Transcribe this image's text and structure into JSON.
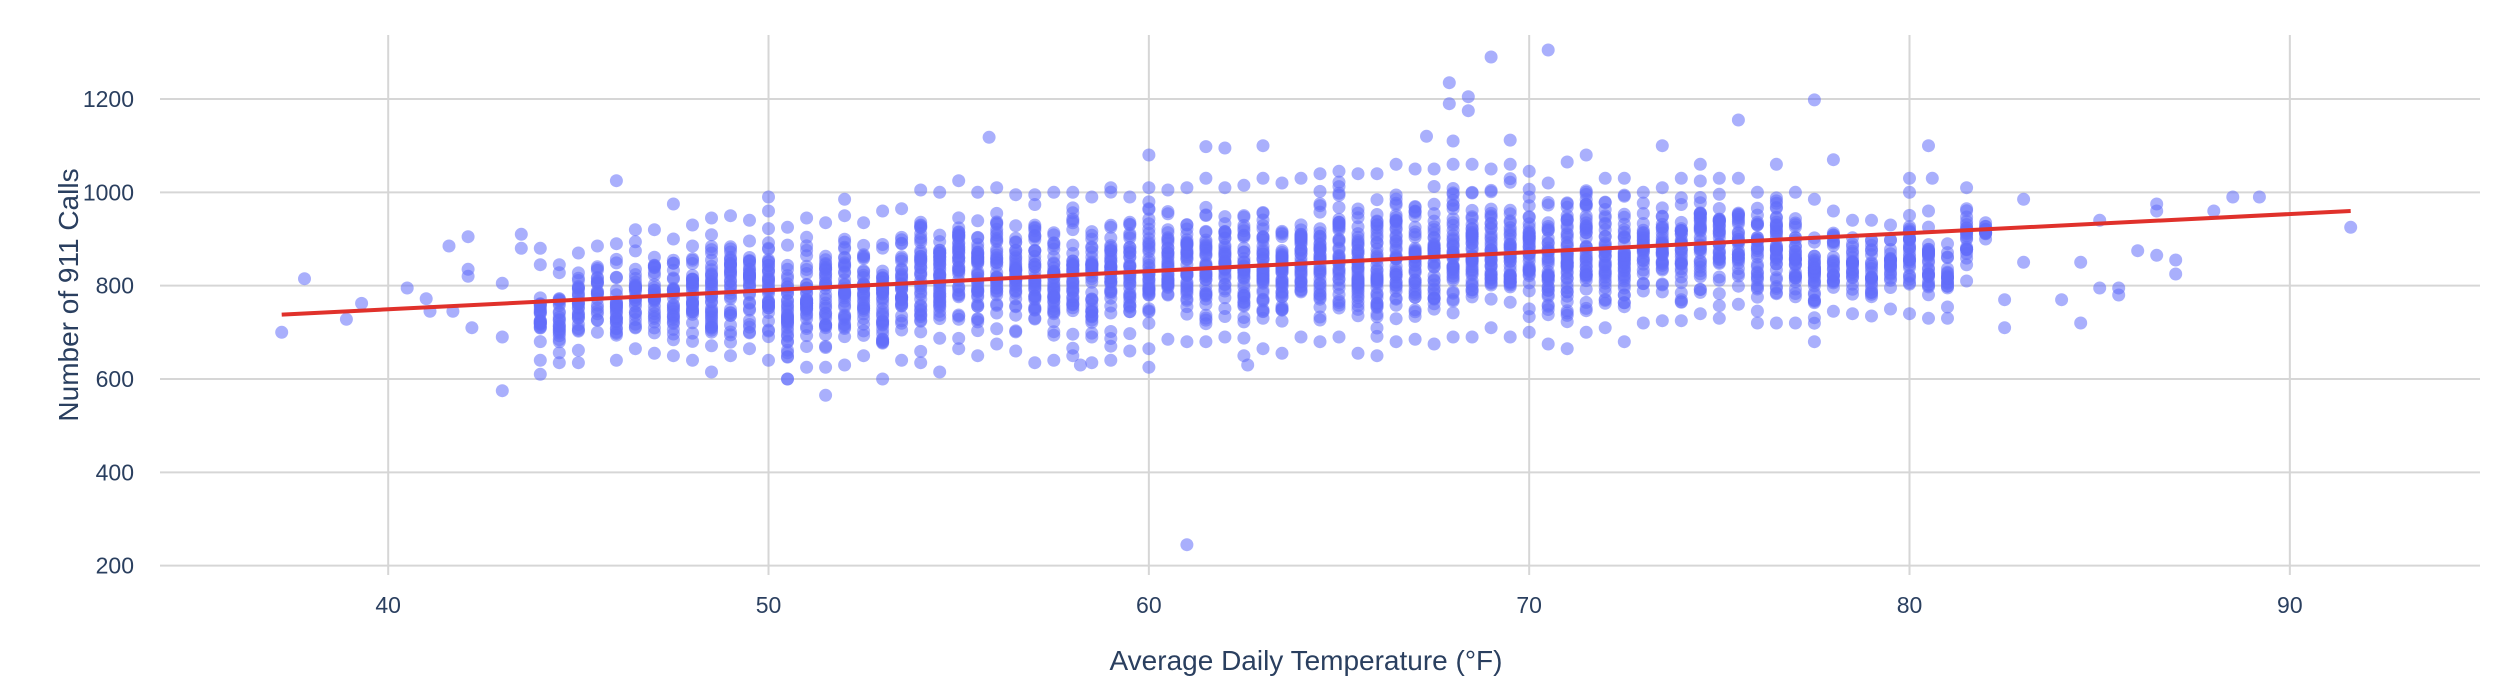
{
  "chart_data": {
    "type": "scatter",
    "title": "",
    "xlabel": "Average Daily Temperature (°F)",
    "ylabel": "Number of 911 Calls",
    "xlim": [
      34,
      95
    ],
    "ylim": [
      180,
      1380
    ],
    "x_ticks": [
      40,
      50,
      60,
      70,
      80,
      90
    ],
    "y_ticks": [
      200,
      400,
      600,
      800,
      1000,
      1200
    ],
    "grid": true,
    "legend": "none",
    "colors": {
      "points": "#636efa",
      "trendline": "#e0312b",
      "grid": "#d6d6d6",
      "text": "#2a3f5f"
    },
    "series": [
      {
        "marker": "circle",
        "description_points": [
          {
            "x": 37.2,
            "y": 700
          },
          {
            "x": 37.8,
            "y": 815
          },
          {
            "x": 38.9,
            "y": 728
          },
          {
            "x": 39.3,
            "y": 762
          },
          {
            "x": 40.5,
            "y": 795
          },
          {
            "x": 41.0,
            "y": 772
          },
          {
            "x": 41.1,
            "y": 745
          },
          {
            "x": 41.6,
            "y": 885
          },
          {
            "x": 41.7,
            "y": 745
          },
          {
            "x": 42.1,
            "y": 905
          },
          {
            "x": 42.1,
            "y": 835
          },
          {
            "x": 42.1,
            "y": 820
          },
          {
            "x": 42.2,
            "y": 710
          },
          {
            "x": 43.0,
            "y": 805
          },
          {
            "x": 43.0,
            "y": 690
          },
          {
            "x": 43.0,
            "y": 575
          },
          {
            "x": 43.5,
            "y": 910
          },
          {
            "x": 43.5,
            "y": 880
          },
          {
            "x": 44.0,
            "y": 610
          },
          {
            "x": 44.0,
            "y": 880
          },
          {
            "x": 46.0,
            "y": 1025
          },
          {
            "x": 47.5,
            "y": 975
          },
          {
            "x": 50.0,
            "y": 990
          },
          {
            "x": 50.5,
            "y": 600
          },
          {
            "x": 51.5,
            "y": 565
          },
          {
            "x": 52.0,
            "y": 985
          },
          {
            "x": 55.8,
            "y": 1118
          },
          {
            "x": 58.2,
            "y": 630
          },
          {
            "x": 60.0,
            "y": 1080
          },
          {
            "x": 60.0,
            "y": 625
          },
          {
            "x": 61.0,
            "y": 245
          },
          {
            "x": 61.5,
            "y": 1098
          },
          {
            "x": 62.0,
            "y": 1095
          },
          {
            "x": 62.6,
            "y": 630
          },
          {
            "x": 63.0,
            "y": 1100
          },
          {
            "x": 67.3,
            "y": 1120
          },
          {
            "x": 67.9,
            "y": 1235
          },
          {
            "x": 67.9,
            "y": 1190
          },
          {
            "x": 68.4,
            "y": 1205
          },
          {
            "x": 68.4,
            "y": 1175
          },
          {
            "x": 68.0,
            "y": 1110
          },
          {
            "x": 69.0,
            "y": 1290
          },
          {
            "x": 69.5,
            "y": 1112
          },
          {
            "x": 70.5,
            "y": 1305
          },
          {
            "x": 73.5,
            "y": 1100
          },
          {
            "x": 75.5,
            "y": 1155
          },
          {
            "x": 77.5,
            "y": 1198
          },
          {
            "x": 78.0,
            "y": 1070
          },
          {
            "x": 80.0,
            "y": 1030
          },
          {
            "x": 80.5,
            "y": 1100
          },
          {
            "x": 80.6,
            "y": 1030
          },
          {
            "x": 82.5,
            "y": 710
          },
          {
            "x": 82.5,
            "y": 770
          },
          {
            "x": 83.0,
            "y": 985
          },
          {
            "x": 83.0,
            "y": 850
          },
          {
            "x": 84.0,
            "y": 770
          },
          {
            "x": 84.5,
            "y": 720
          },
          {
            "x": 84.5,
            "y": 850
          },
          {
            "x": 85.0,
            "y": 795
          },
          {
            "x": 85.0,
            "y": 940
          },
          {
            "x": 85.5,
            "y": 780
          },
          {
            "x": 85.5,
            "y": 795
          },
          {
            "x": 86.0,
            "y": 875
          },
          {
            "x": 86.5,
            "y": 975
          },
          {
            "x": 86.5,
            "y": 960
          },
          {
            "x": 86.5,
            "y": 865
          },
          {
            "x": 87.0,
            "y": 855
          },
          {
            "x": 87.0,
            "y": 825
          },
          {
            "x": 88.0,
            "y": 960
          },
          {
            "x": 88.5,
            "y": 990
          },
          {
            "x": 89.2,
            "y": 990
          },
          {
            "x": 91.6,
            "y": 925
          }
        ],
        "dense_band": [
          {
            "x": 44.0,
            "y_low": 640,
            "y_high": 845
          },
          {
            "x": 44.5,
            "y_low": 635,
            "y_high": 845
          },
          {
            "x": 45.0,
            "y_low": 635,
            "y_high": 870
          },
          {
            "x": 45.5,
            "y_low": 700,
            "y_high": 885
          },
          {
            "x": 46.0,
            "y_low": 640,
            "y_high": 890
          },
          {
            "x": 46.5,
            "y_low": 665,
            "y_high": 920
          },
          {
            "x": 47.0,
            "y_low": 655,
            "y_high": 920
          },
          {
            "x": 47.5,
            "y_low": 650,
            "y_high": 900
          },
          {
            "x": 48.0,
            "y_low": 640,
            "y_high": 930
          },
          {
            "x": 48.5,
            "y_low": 615,
            "y_high": 945
          },
          {
            "x": 49.0,
            "y_low": 650,
            "y_high": 950
          },
          {
            "x": 49.5,
            "y_low": 665,
            "y_high": 940
          },
          {
            "x": 50.0,
            "y_low": 640,
            "y_high": 960
          },
          {
            "x": 50.5,
            "y_low": 600,
            "y_high": 925
          },
          {
            "x": 51.0,
            "y_low": 625,
            "y_high": 945
          },
          {
            "x": 51.5,
            "y_low": 625,
            "y_high": 935
          },
          {
            "x": 52.0,
            "y_low": 630,
            "y_high": 950
          },
          {
            "x": 52.5,
            "y_low": 650,
            "y_high": 935
          },
          {
            "x": 53.0,
            "y_low": 600,
            "y_high": 960
          },
          {
            "x": 53.5,
            "y_low": 640,
            "y_high": 965
          },
          {
            "x": 54.0,
            "y_low": 635,
            "y_high": 1005
          },
          {
            "x": 54.5,
            "y_low": 615,
            "y_high": 1000
          },
          {
            "x": 55.0,
            "y_low": 665,
            "y_high": 1025
          },
          {
            "x": 55.5,
            "y_low": 650,
            "y_high": 1000
          },
          {
            "x": 56.0,
            "y_low": 675,
            "y_high": 1010
          },
          {
            "x": 56.5,
            "y_low": 660,
            "y_high": 995
          },
          {
            "x": 57.0,
            "y_low": 635,
            "y_high": 995
          },
          {
            "x": 57.5,
            "y_low": 640,
            "y_high": 1000
          },
          {
            "x": 58.0,
            "y_low": 650,
            "y_high": 1000
          },
          {
            "x": 58.5,
            "y_low": 635,
            "y_high": 990
          },
          {
            "x": 59.0,
            "y_low": 640,
            "y_high": 1010
          },
          {
            "x": 59.5,
            "y_low": 660,
            "y_high": 990
          },
          {
            "x": 60.0,
            "y_low": 665,
            "y_high": 1010
          },
          {
            "x": 60.5,
            "y_low": 685,
            "y_high": 1005
          },
          {
            "x": 61.0,
            "y_low": 680,
            "y_high": 1010
          },
          {
            "x": 61.5,
            "y_low": 680,
            "y_high": 1030
          },
          {
            "x": 62.0,
            "y_low": 690,
            "y_high": 1010
          },
          {
            "x": 62.5,
            "y_low": 650,
            "y_high": 1015
          },
          {
            "x": 63.0,
            "y_low": 665,
            "y_high": 1030
          },
          {
            "x": 63.5,
            "y_low": 655,
            "y_high": 1020
          },
          {
            "x": 64.0,
            "y_low": 690,
            "y_high": 1030
          },
          {
            "x": 64.5,
            "y_low": 680,
            "y_high": 1040
          },
          {
            "x": 65.0,
            "y_low": 690,
            "y_high": 1045
          },
          {
            "x": 65.5,
            "y_low": 655,
            "y_high": 1040
          },
          {
            "x": 66.0,
            "y_low": 650,
            "y_high": 1040
          },
          {
            "x": 66.5,
            "y_low": 680,
            "y_high": 1060
          },
          {
            "x": 67.0,
            "y_low": 685,
            "y_high": 1050
          },
          {
            "x": 67.5,
            "y_low": 675,
            "y_high": 1050
          },
          {
            "x": 68.0,
            "y_low": 690,
            "y_high": 1060
          },
          {
            "x": 68.5,
            "y_low": 690,
            "y_high": 1060
          },
          {
            "x": 69.0,
            "y_low": 710,
            "y_high": 1050
          },
          {
            "x": 69.5,
            "y_low": 690,
            "y_high": 1060
          },
          {
            "x": 70.0,
            "y_low": 700,
            "y_high": 1045
          },
          {
            "x": 70.5,
            "y_low": 675,
            "y_high": 1020
          },
          {
            "x": 71.0,
            "y_low": 665,
            "y_high": 1065
          },
          {
            "x": 71.5,
            "y_low": 700,
            "y_high": 1080
          },
          {
            "x": 72.0,
            "y_low": 710,
            "y_high": 1030
          },
          {
            "x": 72.5,
            "y_low": 680,
            "y_high": 1030
          },
          {
            "x": 73.0,
            "y_low": 720,
            "y_high": 1000
          },
          {
            "x": 73.5,
            "y_low": 725,
            "y_high": 1010
          },
          {
            "x": 74.0,
            "y_low": 725,
            "y_high": 1030
          },
          {
            "x": 74.5,
            "y_low": 740,
            "y_high": 1060
          },
          {
            "x": 75.0,
            "y_low": 730,
            "y_high": 1030
          },
          {
            "x": 75.5,
            "y_low": 760,
            "y_high": 1030
          },
          {
            "x": 76.0,
            "y_low": 720,
            "y_high": 1000
          },
          {
            "x": 76.5,
            "y_low": 720,
            "y_high": 1060
          },
          {
            "x": 77.0,
            "y_low": 720,
            "y_high": 1000
          },
          {
            "x": 77.5,
            "y_low": 680,
            "y_high": 985
          },
          {
            "x": 78.0,
            "y_low": 745,
            "y_high": 960
          },
          {
            "x": 78.5,
            "y_low": 740,
            "y_high": 940
          },
          {
            "x": 79.0,
            "y_low": 735,
            "y_high": 940
          },
          {
            "x": 79.5,
            "y_low": 750,
            "y_high": 930
          },
          {
            "x": 80.0,
            "y_low": 740,
            "y_high": 1000
          },
          {
            "x": 80.5,
            "y_low": 730,
            "y_high": 960
          },
          {
            "x": 81.0,
            "y_low": 730,
            "y_high": 890
          },
          {
            "x": 81.5,
            "y_low": 810,
            "y_high": 1010
          },
          {
            "x": 82.0,
            "y_low": 900,
            "y_high": 935
          }
        ]
      }
    ],
    "trendline": {
      "type": "linear",
      "x": [
        37.2,
        91.6
      ],
      "y": [
        738,
        960
      ]
    }
  }
}
